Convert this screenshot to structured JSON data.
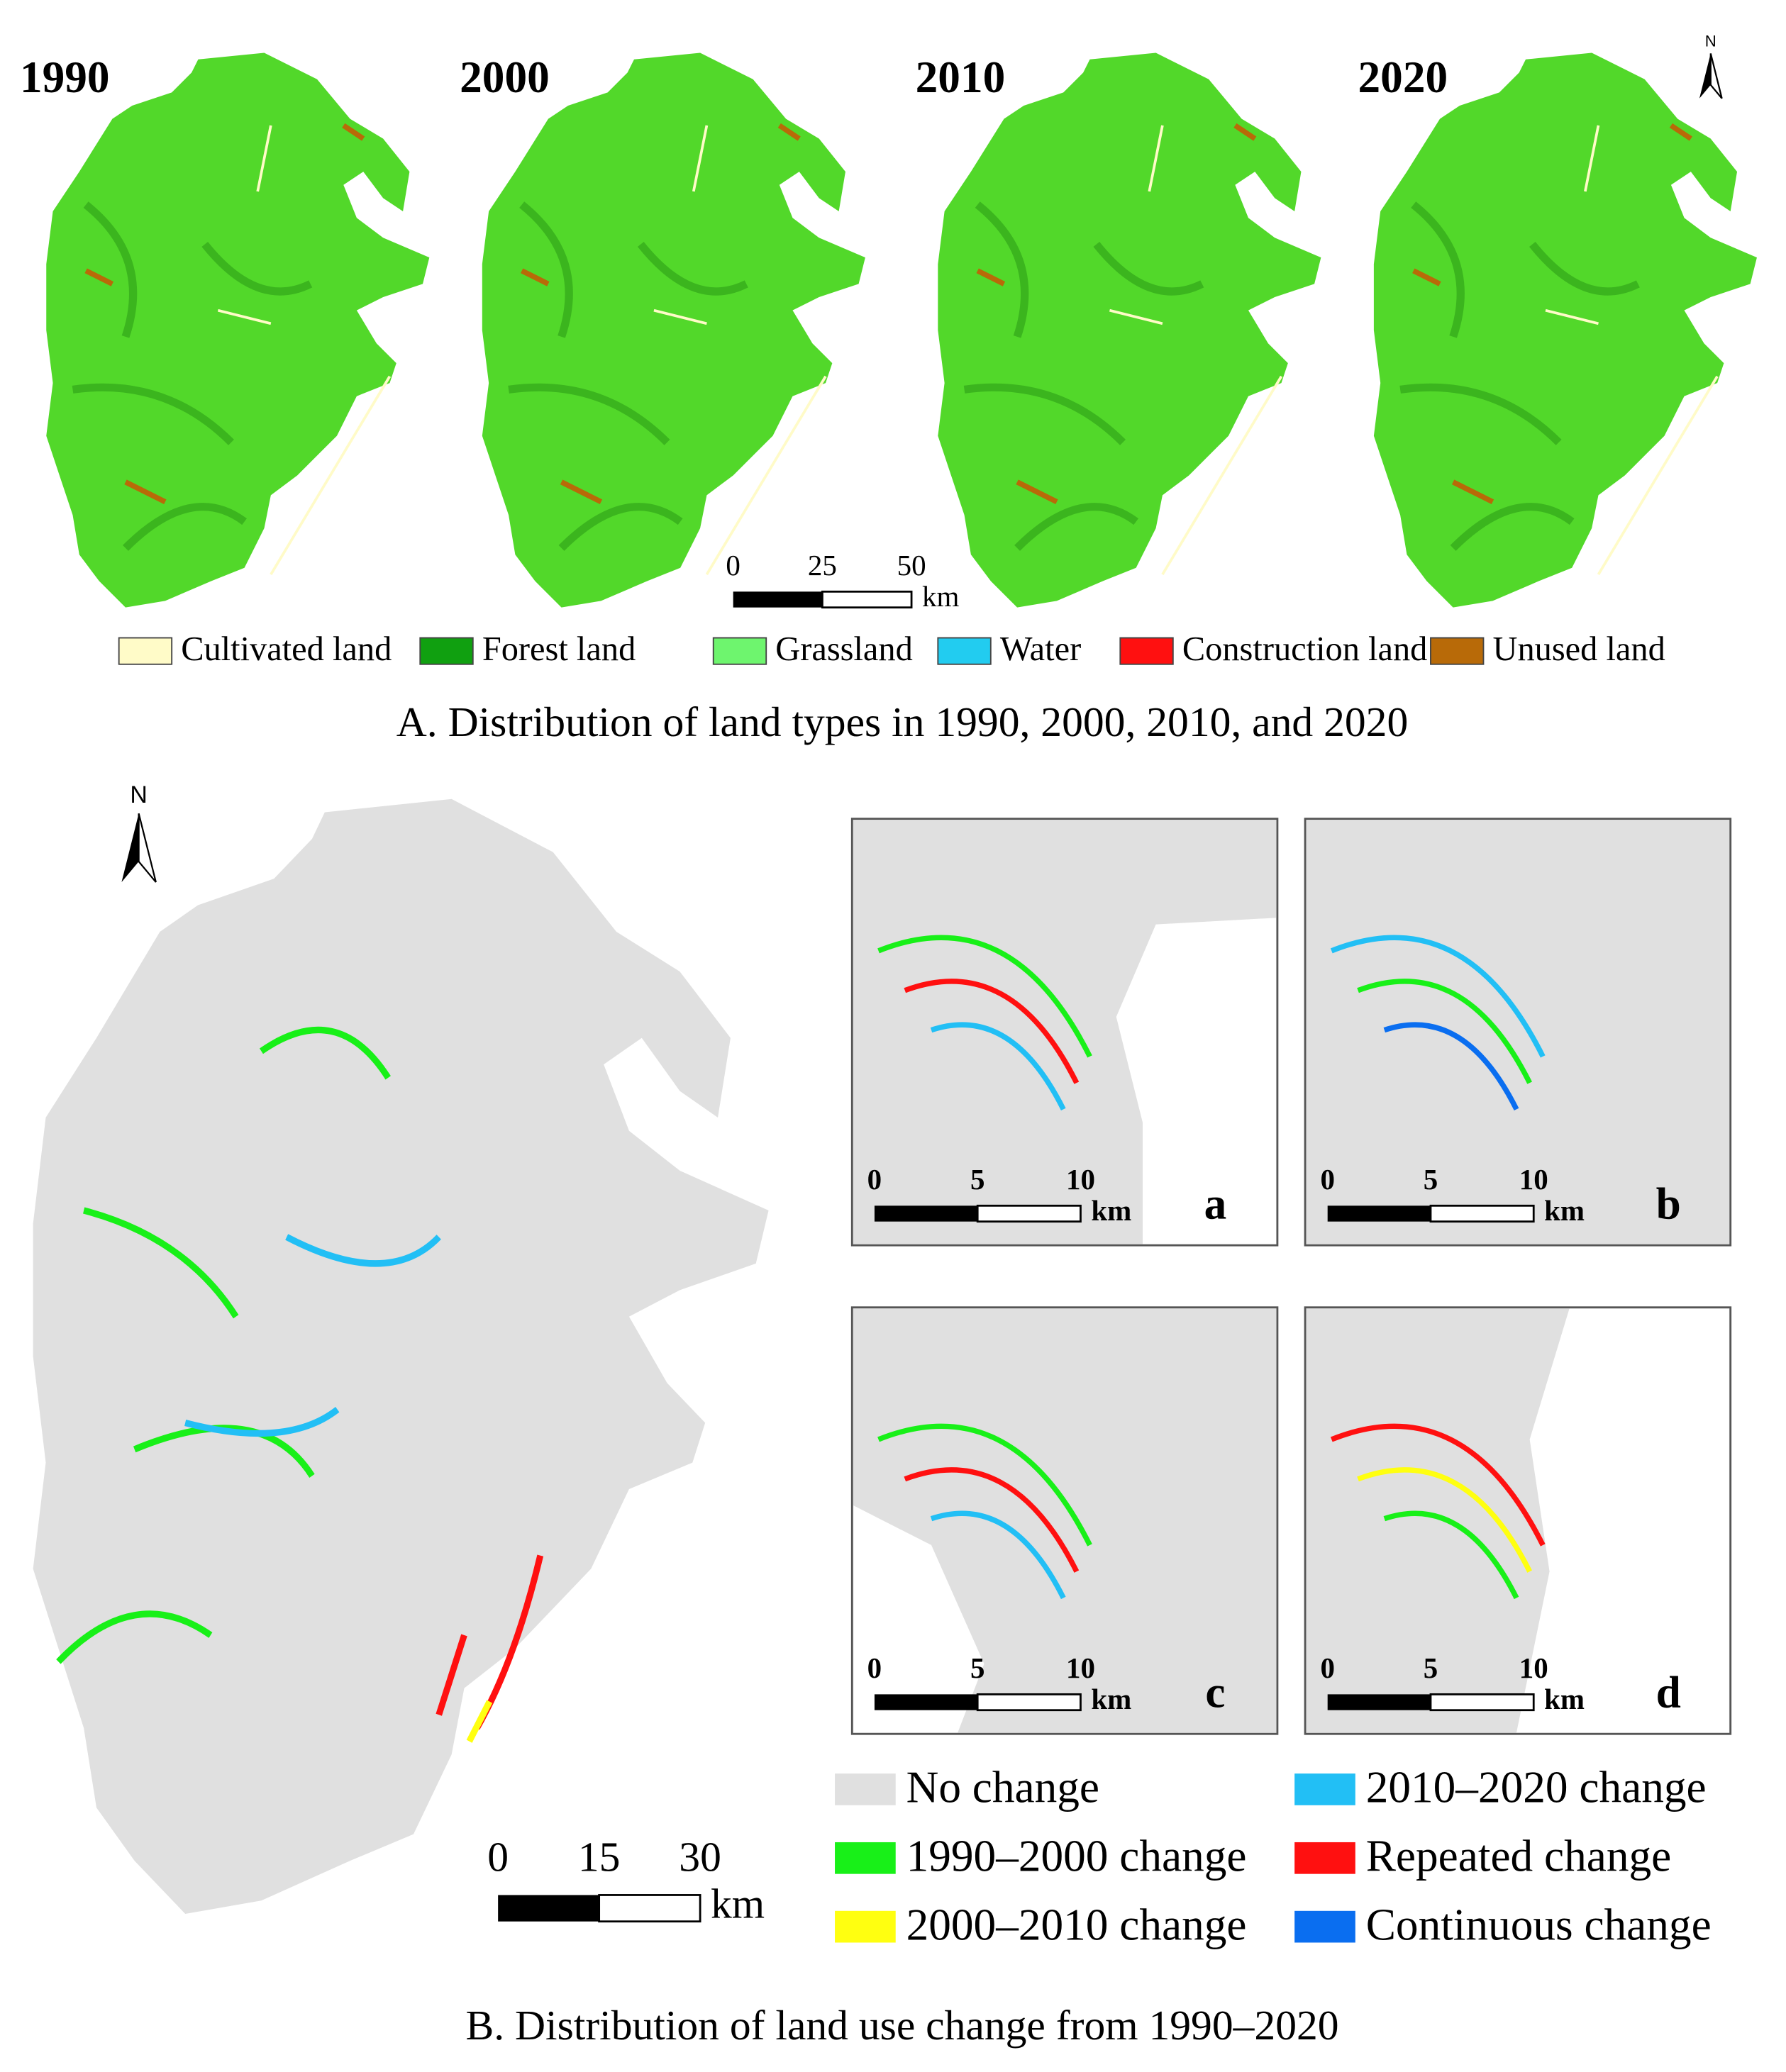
{
  "panel_a": {
    "maps": [
      {
        "year": "1990"
      },
      {
        "year": "2000"
      },
      {
        "year": "2010"
      },
      {
        "year": "2020"
      }
    ],
    "north": "N",
    "scale_bar": {
      "ticks": [
        "0",
        "25",
        "50"
      ],
      "unit": "km"
    },
    "legend": [
      {
        "label": "Cultivated land",
        "color": "#fffbc8"
      },
      {
        "label": "Forest land",
        "color": "#10a010"
      },
      {
        "label": "Grassland",
        "color": "#6ef56e"
      },
      {
        "label": "Water",
        "color": "#22ccf0"
      },
      {
        "label": "Construction land",
        "color": "#ff1010"
      },
      {
        "label": "Unused land",
        "color": "#b86a08"
      }
    ],
    "caption": "A. Distribution of land types in 1990, 2000, 2010, and 2020"
  },
  "panel_b": {
    "north": "N",
    "scale_bar": {
      "ticks": [
        "0",
        "15",
        "30"
      ],
      "unit": "km"
    },
    "insets": [
      {
        "label": "a",
        "scale_bar": {
          "ticks": [
            "0",
            "5",
            "10"
          ],
          "unit": "km"
        }
      },
      {
        "label": "b",
        "scale_bar": {
          "ticks": [
            "0",
            "5",
            "10"
          ],
          "unit": "km"
        }
      },
      {
        "label": "c",
        "scale_bar": {
          "ticks": [
            "0",
            "5",
            "10"
          ],
          "unit": "km"
        }
      },
      {
        "label": "d",
        "scale_bar": {
          "ticks": [
            "0",
            "5",
            "10"
          ],
          "unit": "km"
        }
      }
    ],
    "legend": [
      {
        "label": "No change",
        "color": "#e0e0e0"
      },
      {
        "label": "1990–2000 change",
        "color": "#18f018"
      },
      {
        "label": "2000–2010 change",
        "color": "#ffff10"
      },
      {
        "label": "2010–2020 change",
        "color": "#22bff5"
      },
      {
        "label": "Repeated change",
        "color": "#ff1010"
      },
      {
        "label": "Continuous change",
        "color": "#0a6ef0"
      }
    ],
    "caption": "B. Distribution of land use change  from 1990–2020"
  }
}
